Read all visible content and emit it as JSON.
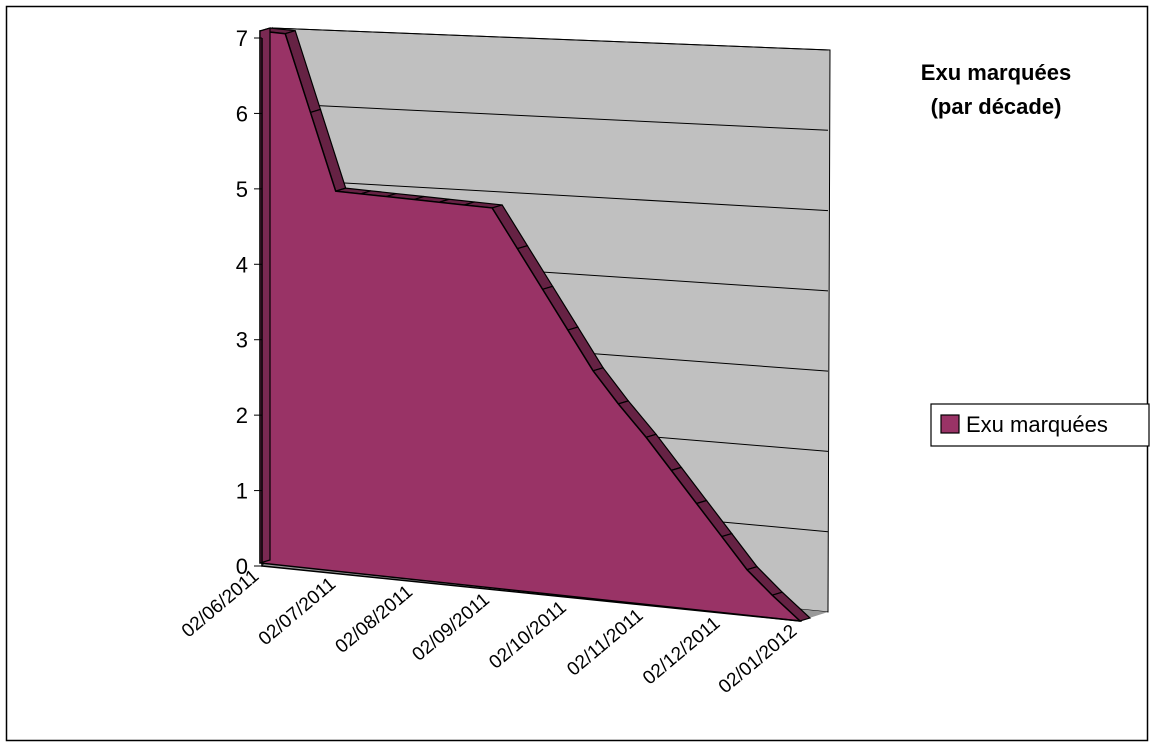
{
  "chart_data": {
    "type": "area",
    "title_lines": [
      "Exu marquées",
      "(par décade)"
    ],
    "xlabel": "",
    "ylabel": "",
    "x_tick_labels": [
      "02/06/2011",
      "02/07/2011",
      "02/08/2011",
      "02/09/2011",
      "02/10/2011",
      "02/11/2011",
      "02/12/2011",
      "02/01/2012"
    ],
    "x_dates": [
      "2011-06-02",
      "2011-06-12",
      "2011-06-22",
      "2011-07-02",
      "2011-07-12",
      "2011-07-22",
      "2011-08-02",
      "2011-08-12",
      "2011-08-22",
      "2011-09-02",
      "2011-09-12",
      "2011-09-22",
      "2011-10-02",
      "2011-10-12",
      "2011-10-22",
      "2011-11-02",
      "2011-11-12",
      "2011-11-22",
      "2011-12-02",
      "2011-12-12",
      "2011-12-22",
      "2012-01-02"
    ],
    "y_ticks": [
      "0",
      "1",
      "2",
      "3",
      "4",
      "5",
      "6",
      "7"
    ],
    "ylim": [
      0,
      7
    ],
    "series": [
      {
        "name": "Exu marquées",
        "values": [
          7,
          7,
          6,
          5,
          5,
          5,
          5,
          5,
          5,
          5,
          4.5,
          4,
          3.5,
          3,
          2.6,
          2.2,
          1.8,
          1.4,
          1,
          0.6,
          0.3,
          0
        ]
      }
    ],
    "grid": true,
    "legend_position": "right",
    "colors": {
      "series": "#993366",
      "wall": "#c0c0c0",
      "floor": "#999999",
      "axis": "#000000"
    }
  }
}
